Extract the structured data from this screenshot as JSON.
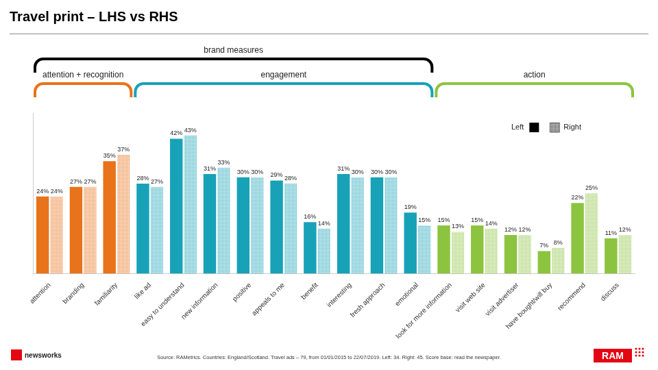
{
  "chart_data": {
    "type": "bar",
    "title": "Travel print – LHS vs RHS",
    "categories": [
      "attention",
      "branding",
      "familiarity",
      "like ad",
      "easy to understand",
      "new information",
      "positive",
      "appeals to me",
      "benefit",
      "interesting",
      "fresh approach",
      "emotional",
      "look for more information",
      "visit web site",
      "visit advertiser",
      "have bought/will buy",
      "recommend",
      "discuss"
    ],
    "series": [
      {
        "name": "Left",
        "color": "#000000",
        "colors": [
          "#E8731A",
          "#E8731A",
          "#E8731A",
          "#17A2B8",
          "#17A2B8",
          "#17A2B8",
          "#17A2B8",
          "#17A2B8",
          "#17A2B8",
          "#17A2B8",
          "#17A2B8",
          "#17A2B8",
          "#8CC43F",
          "#8CC43F",
          "#8CC43F",
          "#8CC43F",
          "#8CC43F",
          "#8CC43F"
        ],
        "values": [
          24,
          27,
          35,
          28,
          42,
          31,
          30,
          29,
          16,
          31,
          30,
          19,
          15,
          15,
          12,
          7,
          22,
          11
        ],
        "value_labels": [
          "24%",
          "27%",
          "35%",
          "28%",
          "42%",
          "31%",
          "30%",
          "29%",
          "16%",
          "31%",
          "30%",
          "19%",
          "15%",
          "15%",
          "12%",
          "7%",
          "22%",
          "11%"
        ]
      },
      {
        "name": "Right",
        "color": "#000000",
        "colors": [
          "#E8731A",
          "#E8731A",
          "#E8731A",
          "#17A2B8",
          "#17A2B8",
          "#17A2B8",
          "#17A2B8",
          "#17A2B8",
          "#17A2B8",
          "#17A2B8",
          "#17A2B8",
          "#17A2B8",
          "#8CC43F",
          "#8CC43F",
          "#8CC43F",
          "#8CC43F",
          "#8CC43F",
          "#8CC43F"
        ],
        "values": [
          24,
          27,
          37,
          27,
          43,
          33,
          30,
          28,
          14,
          30,
          30,
          15,
          13,
          14,
          12,
          8,
          25,
          12
        ],
        "value_labels": [
          "24%",
          "27%",
          "37%",
          "27%",
          "43%",
          "33%",
          "30%",
          "28%",
          "14%",
          "30%",
          "30%",
          "15%",
          "13%",
          "14%",
          "12%",
          "8%",
          "25%",
          "12%"
        ]
      }
    ],
    "ylim": [
      0,
      50
    ],
    "grid": false,
    "legend": "upper right",
    "data_labels": true,
    "tick_labels": "x",
    "annotations": {
      "brackets": [
        {
          "label": "brand measures",
          "first": "attention",
          "last": "emotional",
          "color": "#000000"
        },
        {
          "label": "attention + recognition",
          "first": "attention",
          "last": "familiarity",
          "color": "#E8731A"
        },
        {
          "label": "engagement",
          "first": "like ad",
          "last": "emotional",
          "color": "#17A2B8"
        },
        {
          "label": "action",
          "first": "look for more information",
          "last": "discuss",
          "color": "#8CC43F"
        }
      ],
      "source": "Source: RAMetrics. Countries: England/Scotland. Travel ads – 79, from 01/01/2015 to 22/07/2019. Left: 34. Right: 45. Score base: read the newspaper.",
      "logos": [
        "newsworks",
        "RAM"
      ]
    }
  }
}
